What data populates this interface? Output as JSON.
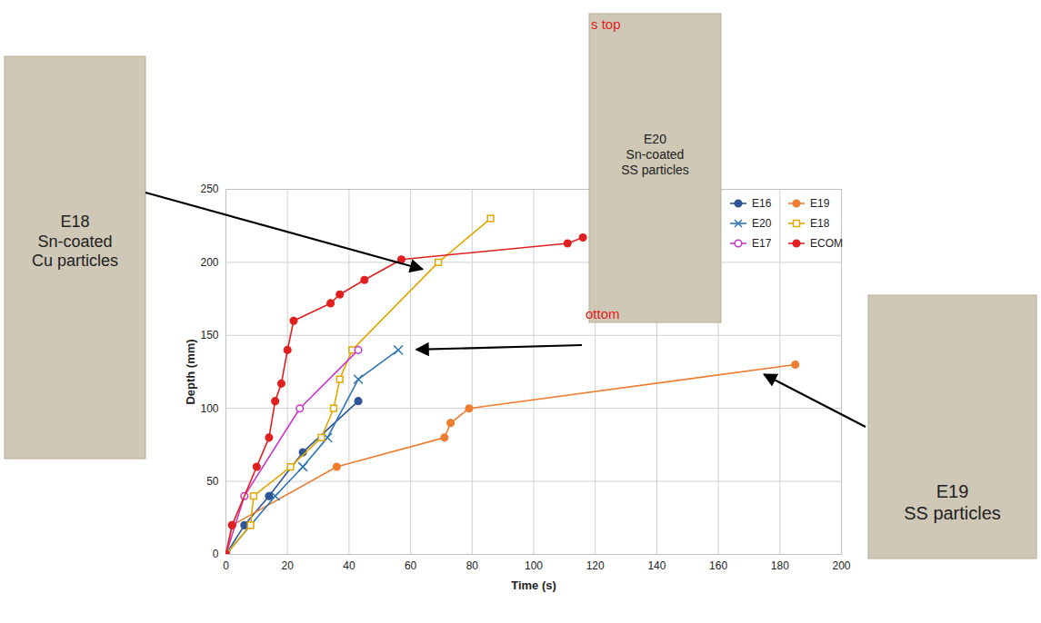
{
  "chart_data": {
    "type": "line",
    "xlabel": "Time (s)",
    "ylabel": "Depth (mm)",
    "xlim": [
      0,
      200
    ],
    "xticks": [
      0,
      20,
      40,
      60,
      80,
      100,
      120,
      140,
      160,
      180,
      200
    ],
    "ylim": [
      0,
      250
    ],
    "yticks": [
      0,
      50,
      100,
      150,
      200,
      250
    ],
    "grid": true,
    "legend": "upper right",
    "series": [
      {
        "name": "E16",
        "color": "#2f5597",
        "marker": "circle",
        "x": [
          0,
          6,
          14,
          25,
          43
        ],
        "values": [
          0,
          20,
          40,
          70,
          105
        ]
      },
      {
        "name": "E19",
        "color": "#ed7d31",
        "marker": "circle",
        "x": [
          0,
          2,
          36,
          71,
          73,
          79,
          185
        ],
        "values": [
          0,
          20,
          60,
          80,
          90,
          100,
          130
        ]
      },
      {
        "name": "E20",
        "color": "#2e75b6",
        "marker": "times",
        "x": [
          0,
          16,
          25,
          33,
          43,
          56
        ],
        "values": [
          0,
          40,
          60,
          80,
          120,
          140
        ]
      },
      {
        "name": "E18",
        "color": "#e0a800",
        "marker": "square-open",
        "x": [
          0,
          8,
          9,
          21,
          31,
          35,
          37,
          41,
          69,
          86
        ],
        "values": [
          0,
          20,
          40,
          60,
          80,
          100,
          120,
          140,
          200,
          230
        ]
      },
      {
        "name": "E17",
        "color": "#cc33cc",
        "marker": "circle-open",
        "x": [
          0,
          6,
          24,
          43
        ],
        "values": [
          0,
          40,
          100,
          140
        ]
      },
      {
        "name": "ECOM",
        "color": "#e02020",
        "marker": "circle",
        "x": [
          0,
          2,
          10,
          14,
          16,
          18,
          20,
          22,
          34,
          37,
          45,
          57,
          111,
          116
        ],
        "values": [
          0,
          20,
          60,
          80,
          105,
          117,
          140,
          160,
          172,
          178,
          188,
          202,
          213,
          217
        ]
      }
    ],
    "annotations": [
      {
        "text": [
          "E18",
          "Sn-coated",
          "Cu particles"
        ],
        "x": 64,
        "y": 195
      },
      {
        "text": [
          "E20",
          "Sn-coated",
          "SS particles"
        ],
        "x": 62,
        "y": 140,
        "photo_texts": [
          "s top",
          "ottom"
        ]
      },
      {
        "text": [
          "E19",
          "SS particles"
        ],
        "x": 175,
        "y": 123
      }
    ]
  }
}
